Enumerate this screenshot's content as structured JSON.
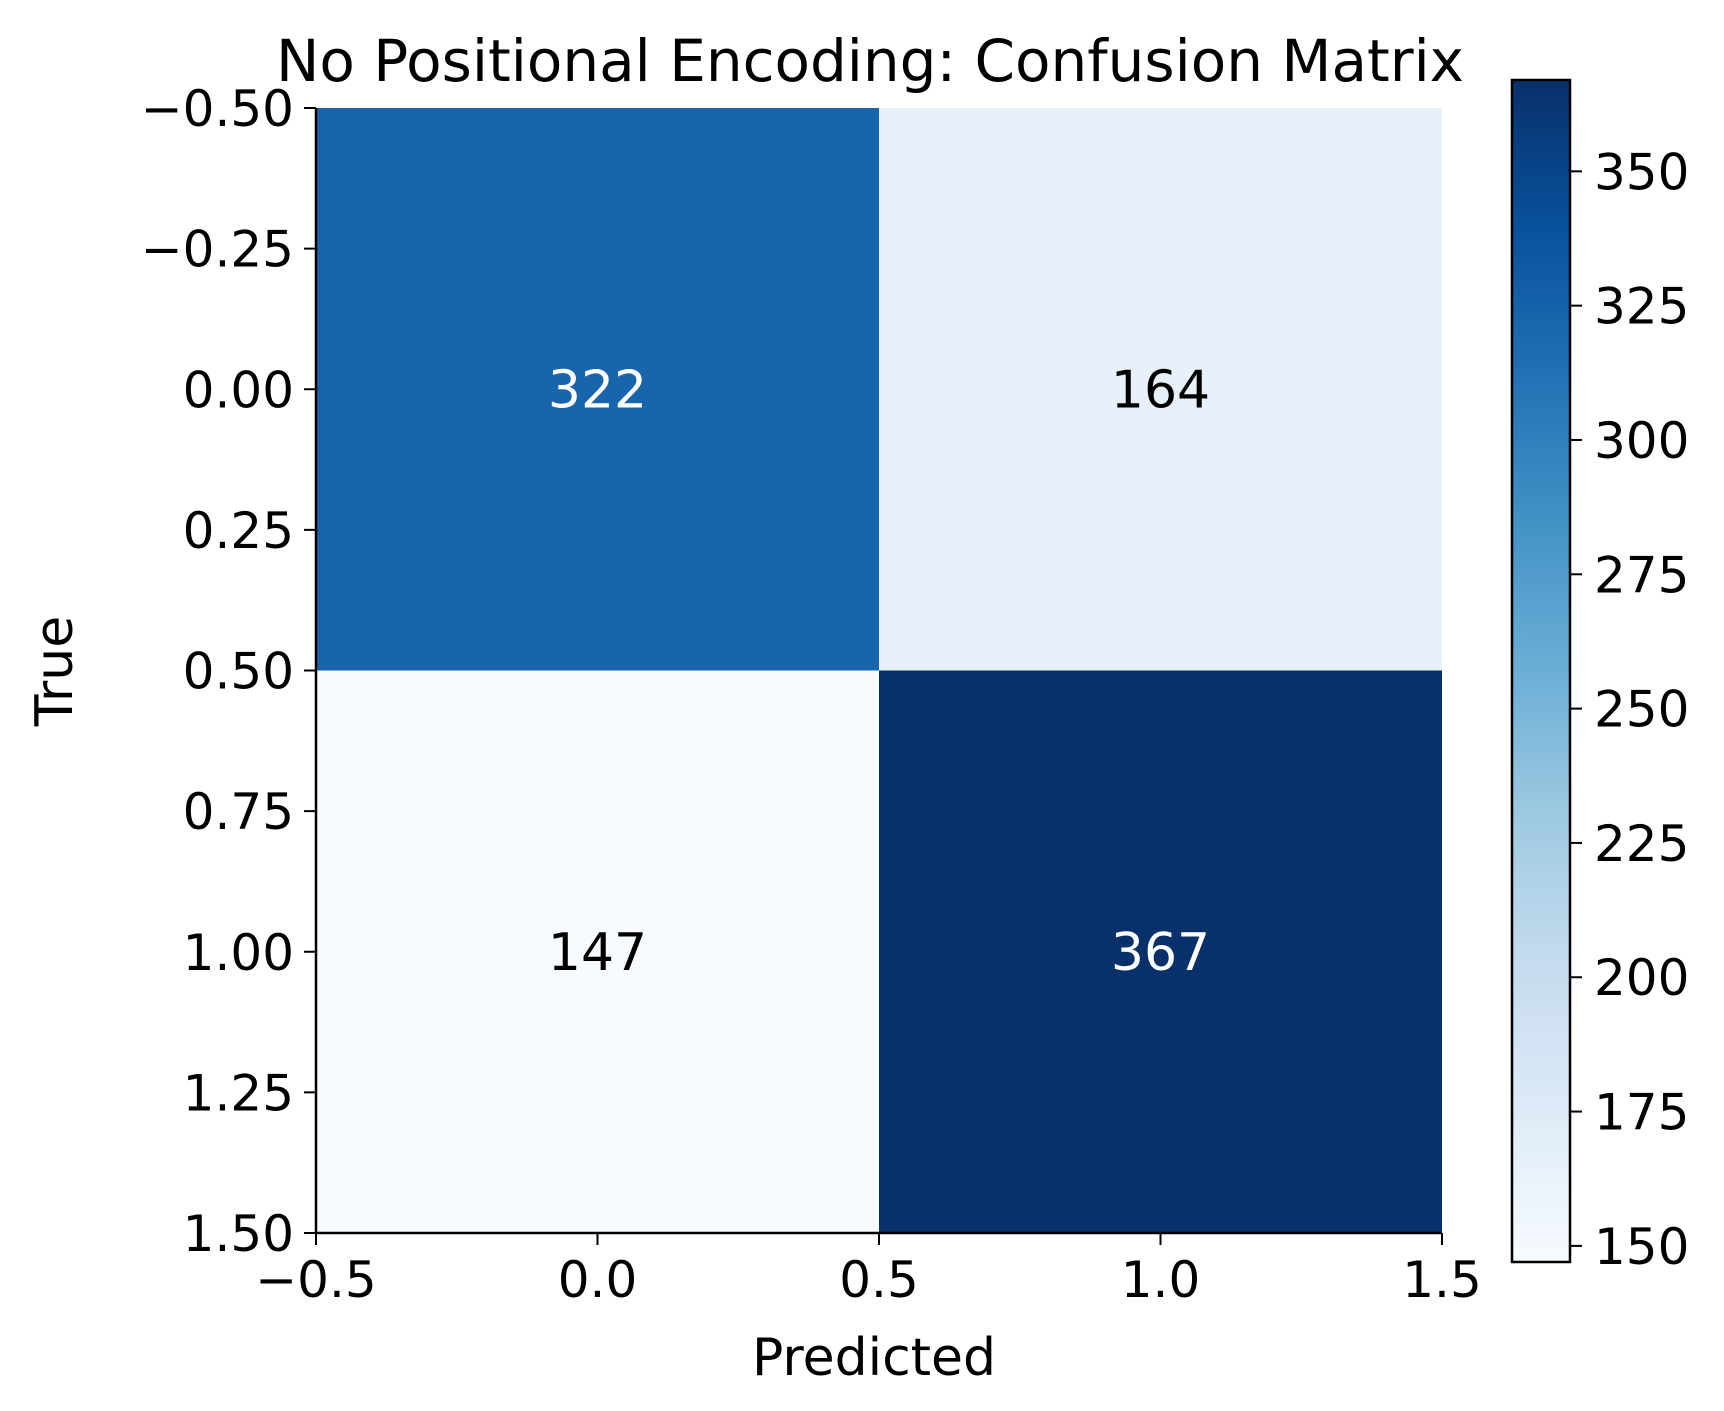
{
  "chart_data": {
    "type": "heatmap",
    "title": "No Positional Encoding: Confusion Matrix",
    "xlabel": "Predicted",
    "ylabel": "True",
    "matrix": [
      [
        322,
        164
      ],
      [
        147,
        367
      ]
    ],
    "xlim": [
      -0.5,
      1.5
    ],
    "ylim": [
      1.5,
      -0.5
    ],
    "x_ticks": [
      "−0.5",
      "0.0",
      "0.5",
      "1.0",
      "1.5"
    ],
    "y_ticks": [
      "−0.50",
      "−0.25",
      "0.00",
      "0.25",
      "0.50",
      "0.75",
      "1.00",
      "1.25",
      "1.50"
    ],
    "colormap": "Blues",
    "color_range": [
      147,
      367
    ],
    "colorbar_ticks": [
      "150",
      "175",
      "200",
      "225",
      "250",
      "275",
      "300",
      "325",
      "350"
    ],
    "annotation_colors": {
      "dark_cell": "#ffffff",
      "light_cell": "#000000"
    },
    "grid": false
  }
}
